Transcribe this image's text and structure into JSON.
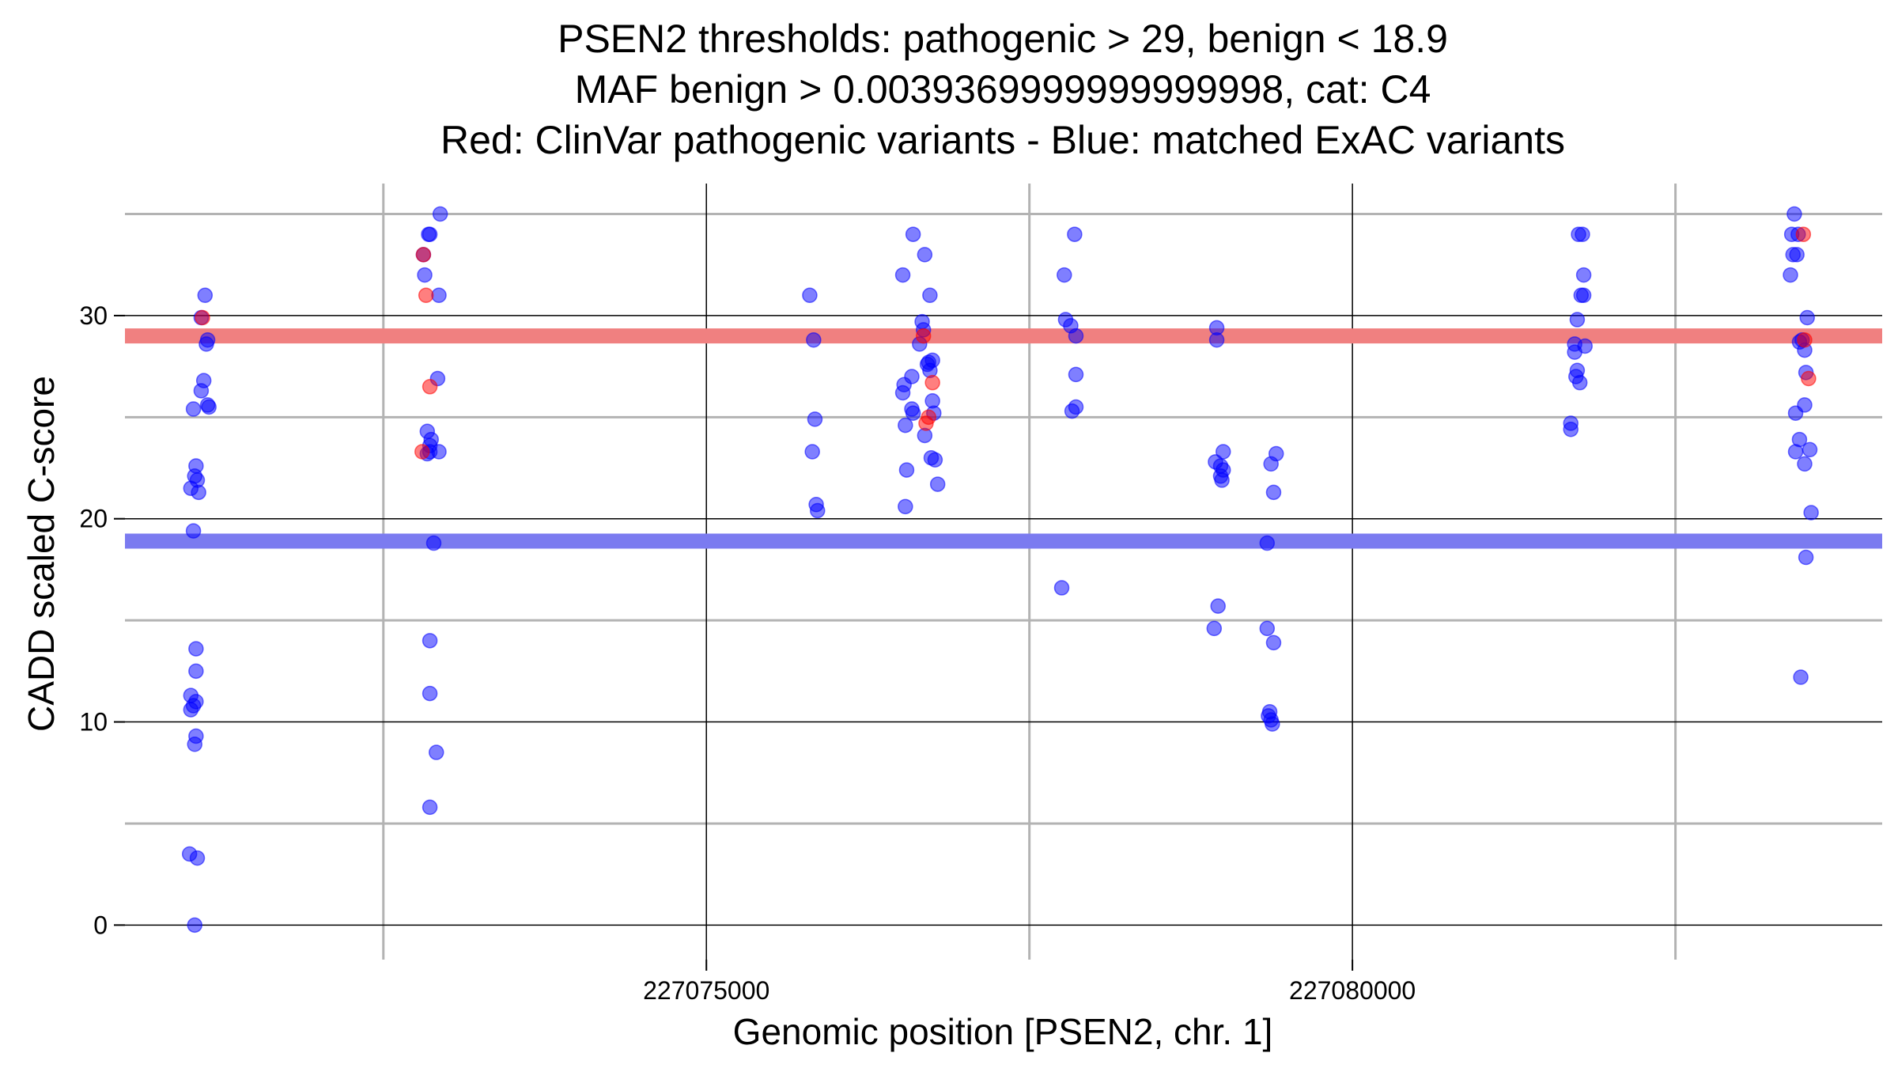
{
  "chart_data": {
    "type": "scatter",
    "title_lines": [
      "PSEN2 thresholds: pathogenic > 29, benign < 18.9",
      "MAF benign > 0.0039369999999999998, cat: C4",
      "Red: ClinVar pathogenic variants - Blue: matched ExAC variants"
    ],
    "xlabel": "Genomic position [PSEN2, chr. 1]",
    "ylabel": "CADD scaled C-score",
    "xlim": [
      227070500,
      227084100
    ],
    "ylim": [
      -1.7,
      36.5
    ],
    "x_ticks": [
      227075000,
      227080000
    ],
    "x_tick_labels": [
      "227075000",
      "227080000"
    ],
    "x_minor_grid": [
      227072500,
      227077500,
      227082500
    ],
    "y_ticks": [
      0,
      10,
      20,
      30
    ],
    "y_tick_labels": [
      "0",
      "10",
      "20",
      "30"
    ],
    "y_minor_grid": [
      5,
      15,
      25,
      35
    ],
    "grid": true,
    "colors": {
      "pathogenic": "#f08080",
      "benign": "#7b7bf0",
      "blue_point": "#0000ff",
      "red_point": "#ff0000",
      "major_grid": "#000000",
      "minor_grid": "#b3b3b3"
    },
    "thresholds": [
      {
        "kind": "pathogenic",
        "y": 29
      },
      {
        "kind": "benign",
        "y": 18.9
      }
    ],
    "series": [
      {
        "kind": "benign",
        "points": [
          [
            227071120,
            31.0
          ],
          [
            227071090,
            29.9
          ],
          [
            227071140,
            28.8
          ],
          [
            227071130,
            28.6
          ],
          [
            227071110,
            26.8
          ],
          [
            227071090,
            26.3
          ],
          [
            227071140,
            25.6
          ],
          [
            227071150,
            25.5
          ],
          [
            227071030,
            25.4
          ],
          [
            227071050,
            22.6
          ],
          [
            227071040,
            22.1
          ],
          [
            227071060,
            21.9
          ],
          [
            227071010,
            21.5
          ],
          [
            227071070,
            21.3
          ],
          [
            227071030,
            19.4
          ],
          [
            227071050,
            13.6
          ],
          [
            227071050,
            12.5
          ],
          [
            227071010,
            11.3
          ],
          [
            227071050,
            11.0
          ],
          [
            227071030,
            10.8
          ],
          [
            227071010,
            10.6
          ],
          [
            227071050,
            9.3
          ],
          [
            227071040,
            8.9
          ],
          [
            227071000,
            3.5
          ],
          [
            227071060,
            3.3
          ],
          [
            227071040,
            0.0
          ],
          [
            227072940,
            35.0
          ],
          [
            227072850,
            34.0
          ],
          [
            227072860,
            34.0
          ],
          [
            227072810,
            33.0
          ],
          [
            227072820,
            32.0
          ],
          [
            227072930,
            31.0
          ],
          [
            227072920,
            26.9
          ],
          [
            227072840,
            24.3
          ],
          [
            227072870,
            23.9
          ],
          [
            227072860,
            23.6
          ],
          [
            227072930,
            23.3
          ],
          [
            227072860,
            23.3
          ],
          [
            227072840,
            23.2
          ],
          [
            227072890,
            18.8
          ],
          [
            227072860,
            14.0
          ],
          [
            227072860,
            11.4
          ],
          [
            227072910,
            8.5
          ],
          [
            227072860,
            5.8
          ],
          [
            227075800,
            31.0
          ],
          [
            227075830,
            28.8
          ],
          [
            227075840,
            24.9
          ],
          [
            227075820,
            23.3
          ],
          [
            227075850,
            20.7
          ],
          [
            227075860,
            20.4
          ],
          [
            227076600,
            34.0
          ],
          [
            227076690,
            33.0
          ],
          [
            227076520,
            32.0
          ],
          [
            227076730,
            31.0
          ],
          [
            227076670,
            29.7
          ],
          [
            227076680,
            29.3
          ],
          [
            227076650,
            28.6
          ],
          [
            227076750,
            27.8
          ],
          [
            227076710,
            27.6
          ],
          [
            227076720,
            27.7
          ],
          [
            227076730,
            27.3
          ],
          [
            227076590,
            27.0
          ],
          [
            227076530,
            26.6
          ],
          [
            227076520,
            26.2
          ],
          [
            227076750,
            25.8
          ],
          [
            227076590,
            25.4
          ],
          [
            227076600,
            25.2
          ],
          [
            227076760,
            25.2
          ],
          [
            227076540,
            24.6
          ],
          [
            227076690,
            24.1
          ],
          [
            227076740,
            23.0
          ],
          [
            227076770,
            22.9
          ],
          [
            227076550,
            22.4
          ],
          [
            227076790,
            21.7
          ],
          [
            227076540,
            20.6
          ],
          [
            227077850,
            34.0
          ],
          [
            227077770,
            32.0
          ],
          [
            227077780,
            29.8
          ],
          [
            227077820,
            29.5
          ],
          [
            227077860,
            29.0
          ],
          [
            227077860,
            27.1
          ],
          [
            227077860,
            25.5
          ],
          [
            227077830,
            25.3
          ],
          [
            227077750,
            16.6
          ],
          [
            227078950,
            29.4
          ],
          [
            227078950,
            28.8
          ],
          [
            227078940,
            22.8
          ],
          [
            227078980,
            22.6
          ],
          [
            227079000,
            22.4
          ],
          [
            227078980,
            22.1
          ],
          [
            227078990,
            21.9
          ],
          [
            227079000,
            23.3
          ],
          [
            227078960,
            15.7
          ],
          [
            227078930,
            14.6
          ],
          [
            227079410,
            23.2
          ],
          [
            227079370,
            22.7
          ],
          [
            227079390,
            21.3
          ],
          [
            227079340,
            18.8
          ],
          [
            227079340,
            14.6
          ],
          [
            227079390,
            13.9
          ],
          [
            227079360,
            10.5
          ],
          [
            227079350,
            10.3
          ],
          [
            227079370,
            10.1
          ],
          [
            227079380,
            9.9
          ],
          [
            227081750,
            34.0
          ],
          [
            227081780,
            34.0
          ],
          [
            227081790,
            32.0
          ],
          [
            227081770,
            31.0
          ],
          [
            227081790,
            31.0
          ],
          [
            227081740,
            29.8
          ],
          [
            227081720,
            28.6
          ],
          [
            227081800,
            28.5
          ],
          [
            227081720,
            28.2
          ],
          [
            227081740,
            27.3
          ],
          [
            227081730,
            27.0
          ],
          [
            227081760,
            26.7
          ],
          [
            227081690,
            24.7
          ],
          [
            227081690,
            24.4
          ],
          [
            227083420,
            35.0
          ],
          [
            227083400,
            34.0
          ],
          [
            227083450,
            34.0
          ],
          [
            227083410,
            33.0
          ],
          [
            227083440,
            33.0
          ],
          [
            227083390,
            32.0
          ],
          [
            227083520,
            29.9
          ],
          [
            227083480,
            28.8
          ],
          [
            227083460,
            28.7
          ],
          [
            227083500,
            28.3
          ],
          [
            227083510,
            27.2
          ],
          [
            227083500,
            25.6
          ],
          [
            227083430,
            25.2
          ],
          [
            227083460,
            23.9
          ],
          [
            227083540,
            23.4
          ],
          [
            227083430,
            23.3
          ],
          [
            227083500,
            22.7
          ],
          [
            227083550,
            20.3
          ],
          [
            227083510,
            18.1
          ],
          [
            227083470,
            12.2
          ]
        ]
      },
      {
        "kind": "pathogenic",
        "points": [
          [
            227071100,
            29.9
          ],
          [
            227072810,
            33.0
          ],
          [
            227072830,
            31.0
          ],
          [
            227072860,
            26.5
          ],
          [
            227072800,
            23.3
          ],
          [
            227076680,
            29.0
          ],
          [
            227076750,
            26.7
          ],
          [
            227076720,
            25.0
          ],
          [
            227076700,
            24.7
          ],
          [
            227083490,
            34.0
          ],
          [
            227083530,
            26.9
          ],
          [
            227083500,
            28.8
          ]
        ]
      }
    ]
  }
}
